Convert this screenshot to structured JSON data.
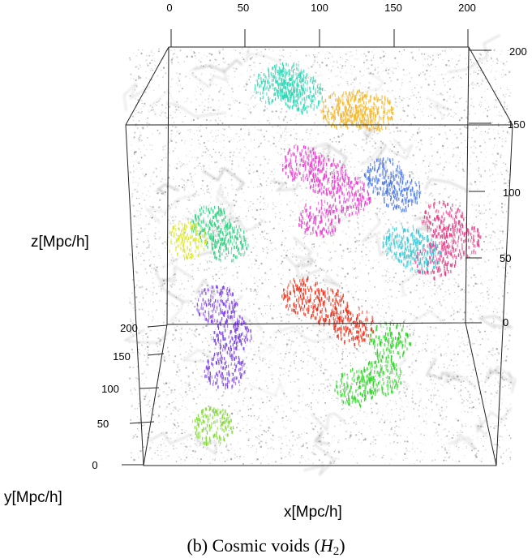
{
  "chart_data": {
    "type": "scatter",
    "projection": "3d",
    "caption_prefix": "(b) Cosmic voids (",
    "caption_var": "H",
    "caption_sub": "2",
    "caption_suffix": ")",
    "xlabel": "x[Mpc/h]",
    "ylabel": "y[Mpc/h]",
    "zlabel": "z[Mpc/h]",
    "xlim": [
      0,
      200
    ],
    "ylim": [
      0,
      200
    ],
    "zlim": [
      0,
      200
    ],
    "x_ticks": [
      "0",
      "50",
      "100",
      "150",
      "200"
    ],
    "y_ticks": [
      "0",
      "50",
      "100",
      "150",
      "200"
    ],
    "z_ticks_right": [
      "0",
      "50",
      "100",
      "150",
      "200"
    ],
    "background": "dark matter particle cloud (grey)",
    "series": [
      {
        "color": "#2fd6b4",
        "points": [
          [
            72,
            190,
            175
          ],
          [
            80,
            185,
            180
          ],
          [
            90,
            180,
            172
          ]
        ]
      },
      {
        "color": "#f5b72a",
        "points": [
          [
            115,
            150,
            170
          ],
          [
            125,
            145,
            172
          ],
          [
            135,
            150,
            168
          ]
        ]
      },
      {
        "color": "#e83bd0",
        "points": [
          [
            90,
            130,
            140
          ],
          [
            105,
            120,
            135
          ],
          [
            120,
            125,
            120
          ],
          [
            100,
            110,
            110
          ]
        ]
      },
      {
        "color": "#4a78e8",
        "points": [
          [
            140,
            120,
            135
          ],
          [
            150,
            110,
            128
          ]
        ]
      },
      {
        "color": "#e33d86",
        "points": [
          [
            175,
            110,
            110
          ],
          [
            185,
            100,
            100
          ],
          [
            170,
            105,
            85
          ]
        ]
      },
      {
        "color": "#38c8d6",
        "points": [
          [
            150,
            95,
            100
          ],
          [
            160,
            90,
            95
          ]
        ]
      },
      {
        "color": "#2ad07e",
        "points": [
          [
            35,
            100,
            110
          ],
          [
            45,
            95,
            100
          ]
        ]
      },
      {
        "color": "#dde82a",
        "points": [
          [
            20,
            100,
            100
          ]
        ]
      },
      {
        "color": "#7a3be6",
        "points": [
          [
            40,
            70,
            70
          ],
          [
            50,
            60,
            55
          ],
          [
            45,
            55,
            35
          ]
        ]
      },
      {
        "color": "#ee2a12",
        "points": [
          [
            90,
            70,
            75
          ],
          [
            105,
            65,
            70
          ],
          [
            120,
            60,
            60
          ]
        ]
      },
      {
        "color": "#2ad422",
        "points": [
          [
            140,
            50,
            55
          ],
          [
            135,
            45,
            35
          ],
          [
            120,
            40,
            30
          ]
        ]
      },
      {
        "color": "#7bd82a",
        "points": [
          [
            40,
            20,
            15
          ]
        ]
      }
    ]
  }
}
